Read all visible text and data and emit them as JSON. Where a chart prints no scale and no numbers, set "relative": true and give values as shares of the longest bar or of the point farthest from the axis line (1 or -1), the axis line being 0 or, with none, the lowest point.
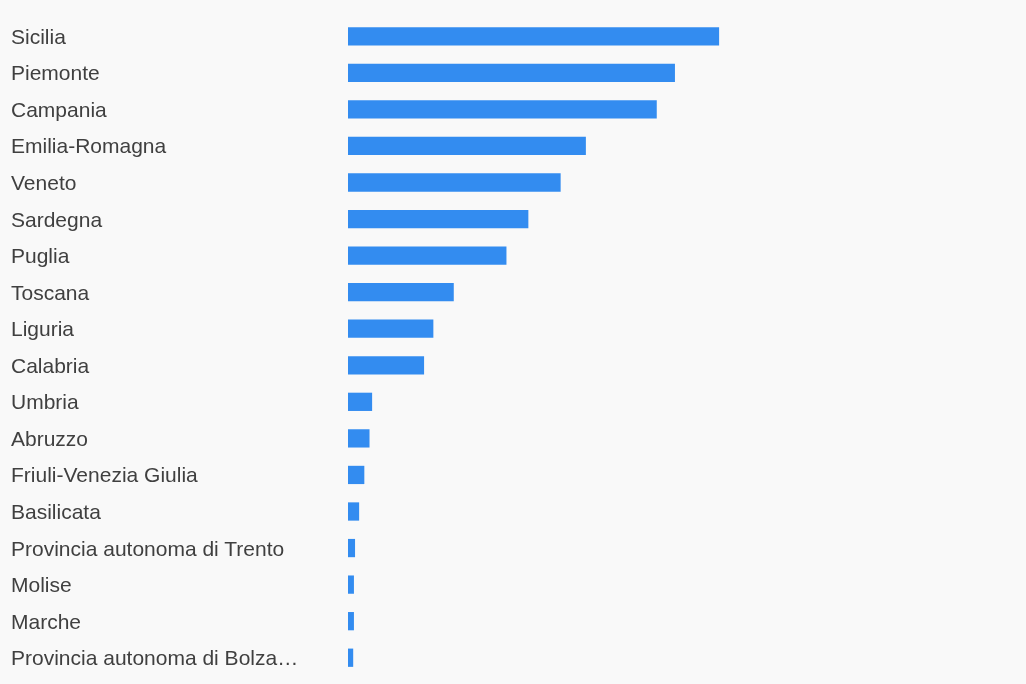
{
  "chart_data": {
    "type": "bar",
    "orientation": "horizontal",
    "relative": true,
    "color": "#338cf0",
    "categories": [
      "Sicilia",
      "Piemonte",
      "Campania",
      "Emilia-Romagna",
      "Veneto",
      "Sardegna",
      "Puglia",
      "Toscana",
      "Liguria",
      "Calabria",
      "Umbria",
      "Abruzzo",
      "Friuli-Venezia Giulia",
      "Basilicata",
      "Provincia autonoma di Trento",
      "Molise",
      "Marche",
      "Provincia autonoma di Bolza…"
    ],
    "values": [
      1,
      0.881,
      0.832,
      0.641,
      0.573,
      0.486,
      0.427,
      0.285,
      0.23,
      0.205,
      0.065,
      0.058,
      0.044,
      0.03,
      0.019,
      0.016,
      0.016,
      0.014
    ]
  }
}
